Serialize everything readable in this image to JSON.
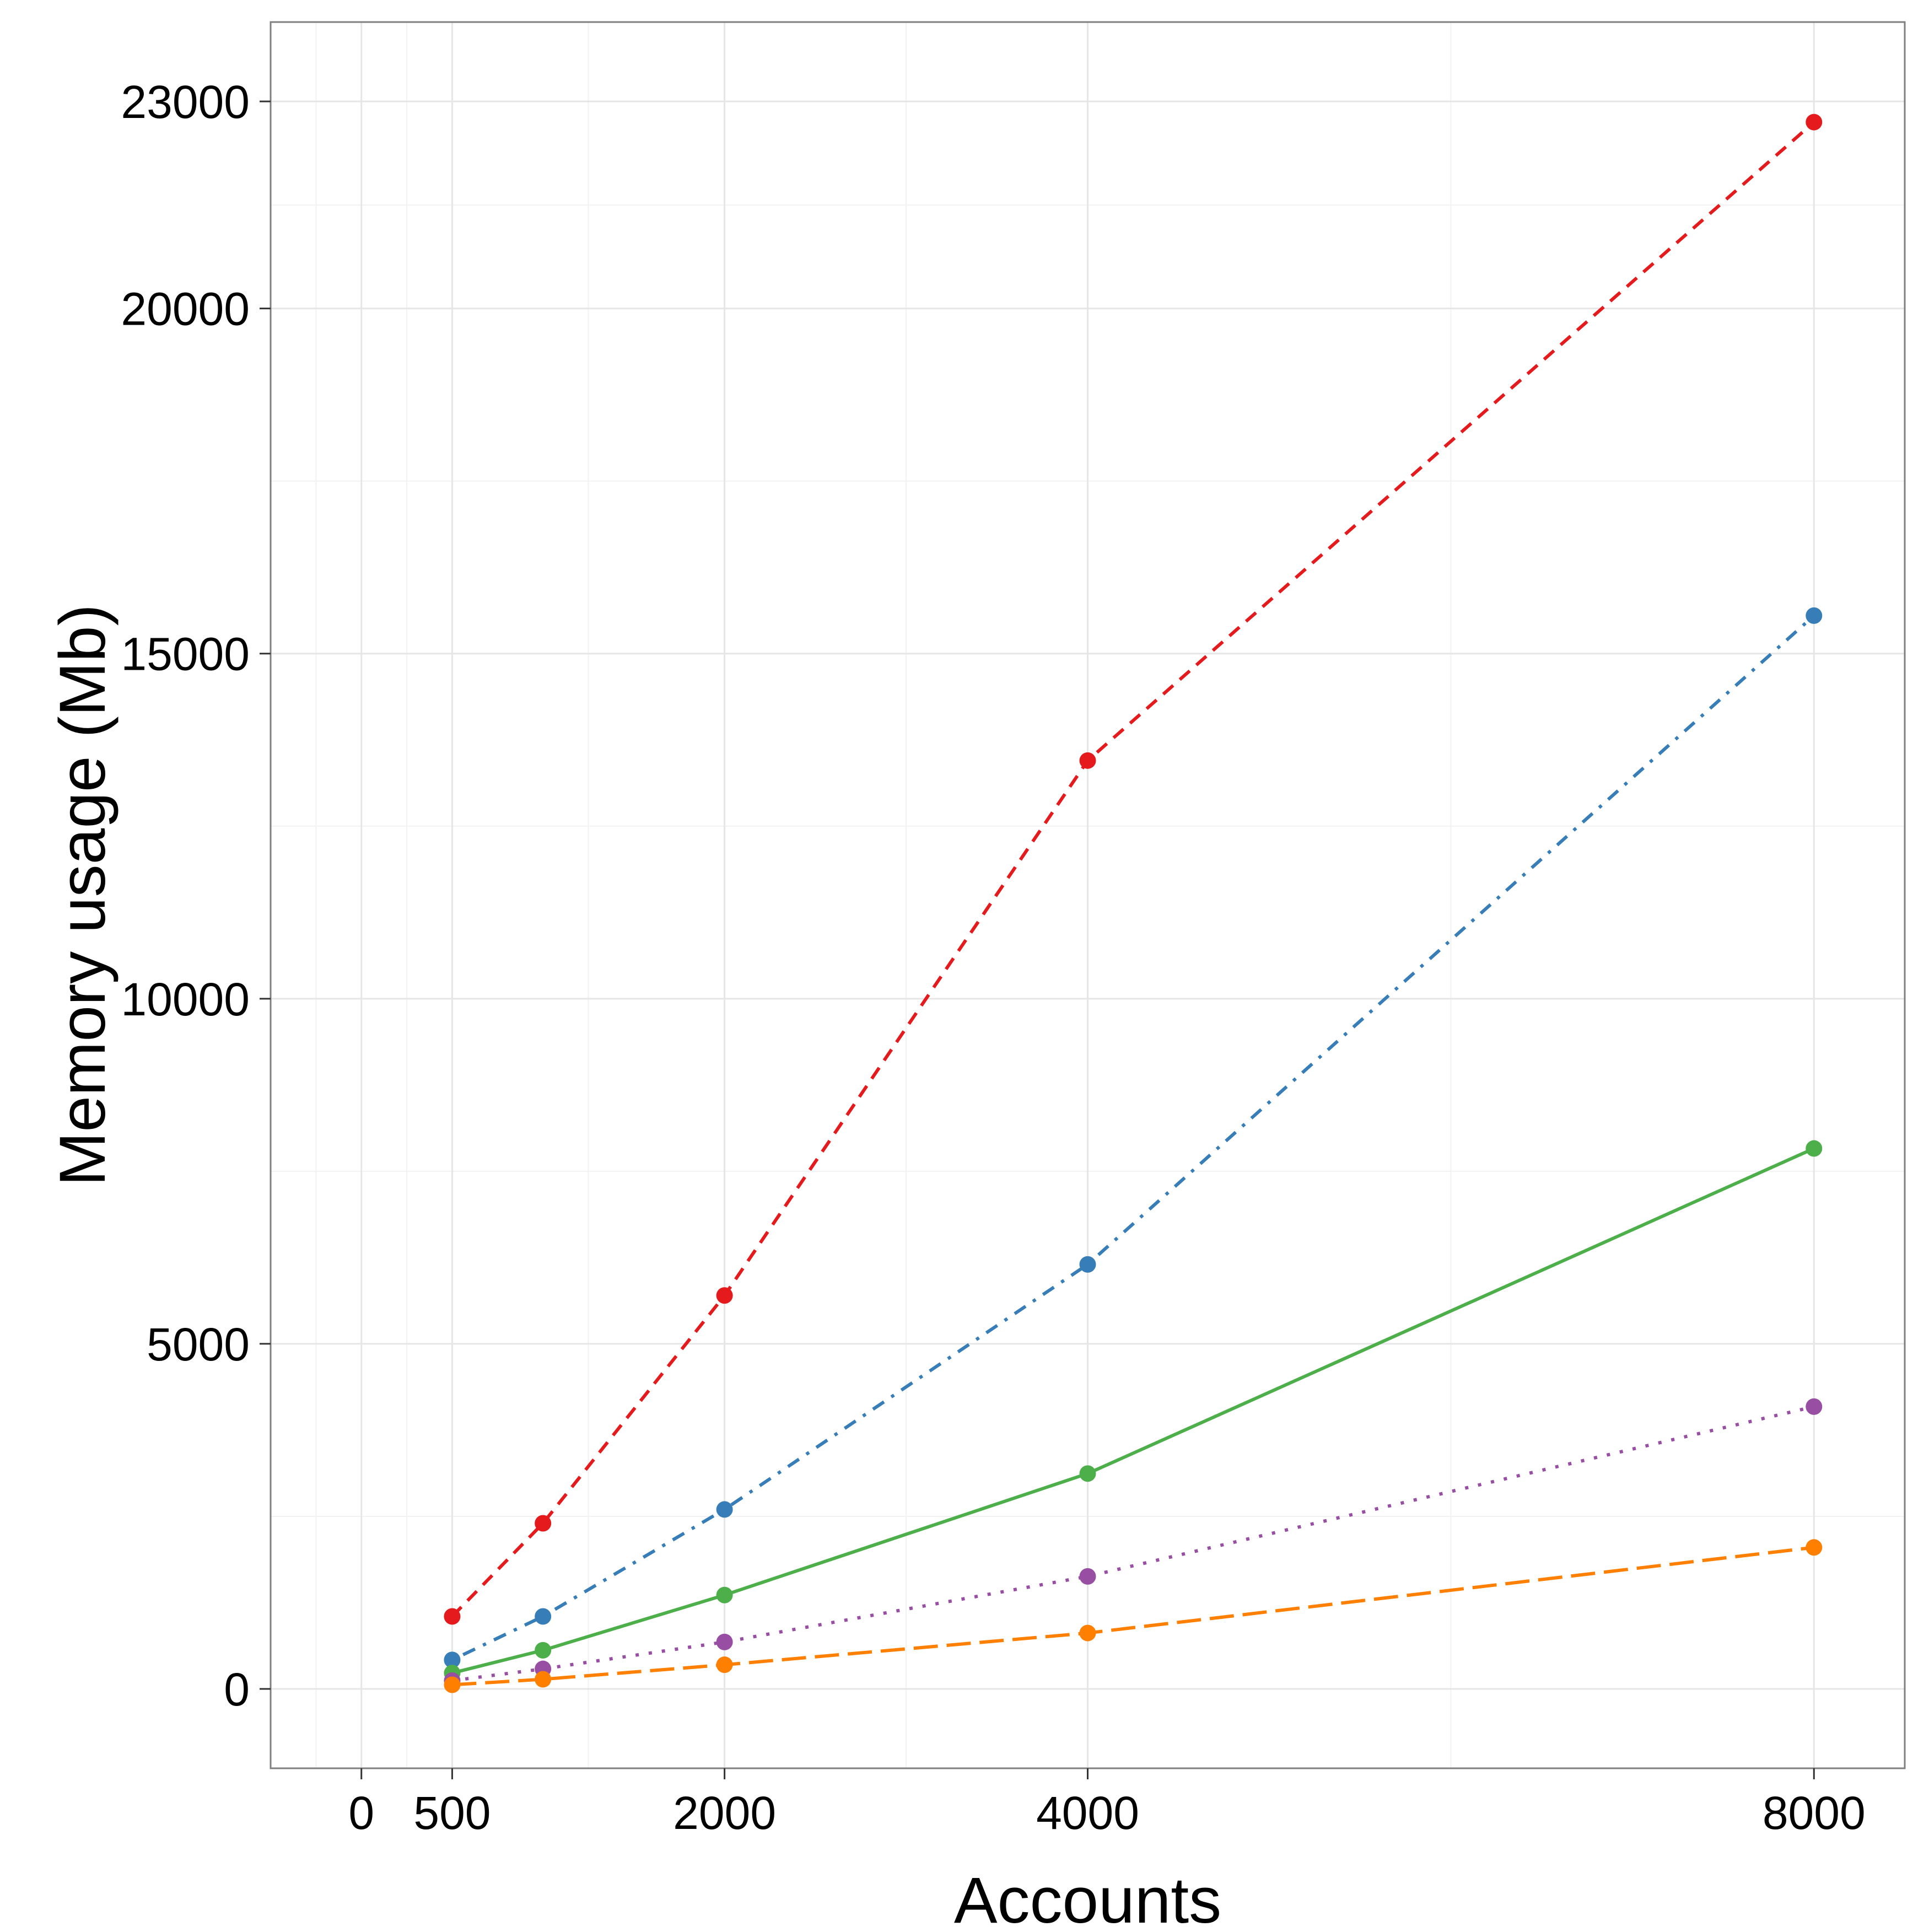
{
  "chart_data": {
    "type": "line",
    "title": "",
    "xlabel": "Accounts",
    "ylabel": "Memory usage (Mb)",
    "xlim": [
      -500,
      8500
    ],
    "ylim": [
      -1150,
      24150
    ],
    "x_ticks": [
      0,
      500,
      2000,
      4000,
      8000
    ],
    "x_tick_labels": [
      "0",
      "500",
      "2000",
      "4000",
      "8000"
    ],
    "y_ticks": [
      0,
      5000,
      10000,
      15000,
      20000,
      23000
    ],
    "y_tick_labels": [
      "0",
      "5000",
      "10000",
      "15000",
      "20000",
      "23000"
    ],
    "grid": true,
    "legend": "none",
    "series": [
      {
        "color": "#E41A1C",
        "line_style": "dashed",
        "x": [
          500,
          1000,
          2000,
          4000,
          8000
        ],
        "values": [
          1050,
          2400,
          5700,
          13450,
          22700
        ]
      },
      {
        "color": "#377EB8",
        "line_style": "dotdash",
        "x": [
          500,
          1000,
          2000,
          4000,
          8000
        ],
        "values": [
          420,
          1050,
          2600,
          6150,
          15550
        ]
      },
      {
        "color": "#4DAF4A",
        "line_style": "solid",
        "x": [
          500,
          1000,
          2000,
          4000,
          8000
        ],
        "values": [
          230,
          560,
          1360,
          3120,
          7830
        ]
      },
      {
        "color": "#984EA3",
        "line_style": "dotted",
        "x": [
          500,
          1000,
          2000,
          4000,
          8000
        ],
        "values": [
          120,
          290,
          680,
          1630,
          4090
        ]
      },
      {
        "color": "#FF7F00",
        "line_style": "longdash",
        "x": [
          500,
          1000,
          2000,
          4000,
          8000
        ],
        "values": [
          60,
          140,
          350,
          810,
          2050
        ]
      }
    ]
  }
}
